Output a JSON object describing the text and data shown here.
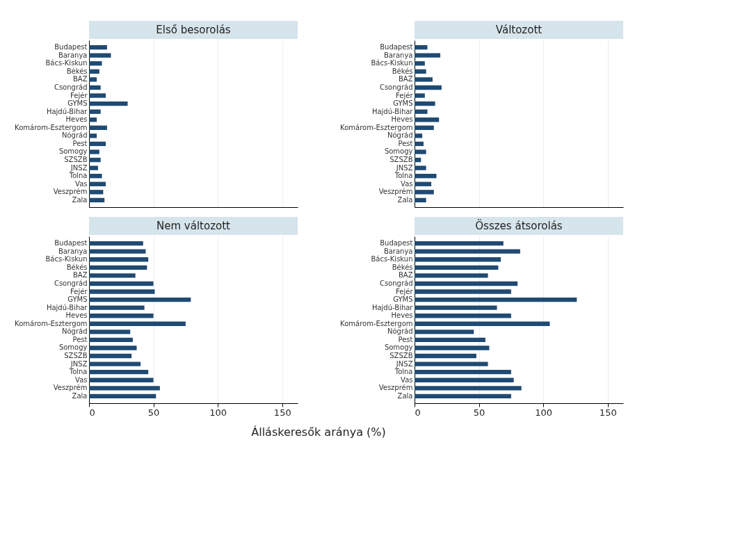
{
  "chart_data": [
    {
      "type": "bar",
      "orientation": "horizontal",
      "title": "Első besorolás",
      "categories": [
        "Budapest",
        "Baranya",
        "Bács-Kiskun",
        "Békés",
        "BAZ",
        "Csongrád",
        "Fejér",
        "GYMS",
        "Hajdú-Bihar",
        "Heves",
        "Komárom-Esztergom",
        "Nógrád",
        "Pest",
        "Somogy",
        "SZSZB",
        "JNSZ",
        "Tolna",
        "Vas",
        "Veszprém",
        "Zala"
      ],
      "values": [
        14,
        17,
        10,
        8,
        6,
        9,
        13,
        30,
        9,
        6,
        14,
        6,
        13,
        8,
        9,
        7,
        10,
        13,
        11,
        12
      ],
      "color": "#1f4a73",
      "xlim": [
        0,
        162
      ],
      "xticks": [
        0,
        50,
        100,
        150
      ],
      "grid": "x",
      "tick_labels": "y"
    },
    {
      "type": "bar",
      "orientation": "horizontal",
      "title": "Változott",
      "categories": [
        "Budapest",
        "Baranya",
        "Bács-Kiskun",
        "Békés",
        "BAZ",
        "Csongrád",
        "Fejér",
        "GYMS",
        "Hajdú-Bihar",
        "Heves",
        "Komárom-Esztergom",
        "Nógrád",
        "Pest",
        "Somogy",
        "SZSZB",
        "JNSZ",
        "Tolna",
        "Vas",
        "Veszprém",
        "Zala"
      ],
      "values": [
        10,
        20,
        8,
        9,
        14,
        21,
        8,
        16,
        10,
        19,
        15,
        6,
        7,
        9,
        5,
        9,
        17,
        13,
        15,
        9
      ],
      "color": "#1f4a73",
      "xlim": [
        0,
        162
      ],
      "xticks": [
        0,
        50,
        100,
        150
      ],
      "grid": "x",
      "tick_labels": "y"
    },
    {
      "type": "bar",
      "orientation": "horizontal",
      "title": "Nem változott",
      "xlabel": "Álláskeresők aránya (%)",
      "categories": [
        "Budapest",
        "Baranya",
        "Bács-Kiskun",
        "Békés",
        "BAZ",
        "Csongrád",
        "Fejér",
        "GYMS",
        "Hajdú-Bihar",
        "Heves",
        "Komárom-Esztergom",
        "Nógrád",
        "Pest",
        "Somogy",
        "SZSZB",
        "JNSZ",
        "Tolna",
        "Vas",
        "Veszprém",
        "Zala"
      ],
      "values": [
        42,
        44,
        46,
        45,
        36,
        50,
        51,
        79,
        43,
        50,
        75,
        32,
        34,
        37,
        33,
        40,
        46,
        50,
        55,
        52
      ],
      "color": "#1f4a73",
      "xlim": [
        0,
        162
      ],
      "xticks": [
        0,
        50,
        100,
        150
      ],
      "grid": "x"
    },
    {
      "type": "bar",
      "orientation": "horizontal",
      "title": "Összes átsorolás",
      "categories": [
        "Budapest",
        "Baranya",
        "Bács-Kiskun",
        "Békés",
        "BAZ",
        "Csongrád",
        "Fejér",
        "GYMS",
        "Hajdú-Bihar",
        "Heves",
        "Komárom-Esztergom",
        "Nógrád",
        "Pest",
        "Somogy",
        "SZSZB",
        "JNSZ",
        "Tolna",
        "Vas",
        "Veszprém",
        "Zala"
      ],
      "values": [
        69,
        82,
        67,
        65,
        57,
        80,
        75,
        126,
        64,
        75,
        105,
        46,
        55,
        58,
        48,
        57,
        75,
        77,
        83,
        75
      ],
      "color": "#1f4a73",
      "xlim": [
        0,
        162
      ],
      "xticks": [
        0,
        50,
        100,
        150
      ],
      "grid": "x"
    }
  ]
}
